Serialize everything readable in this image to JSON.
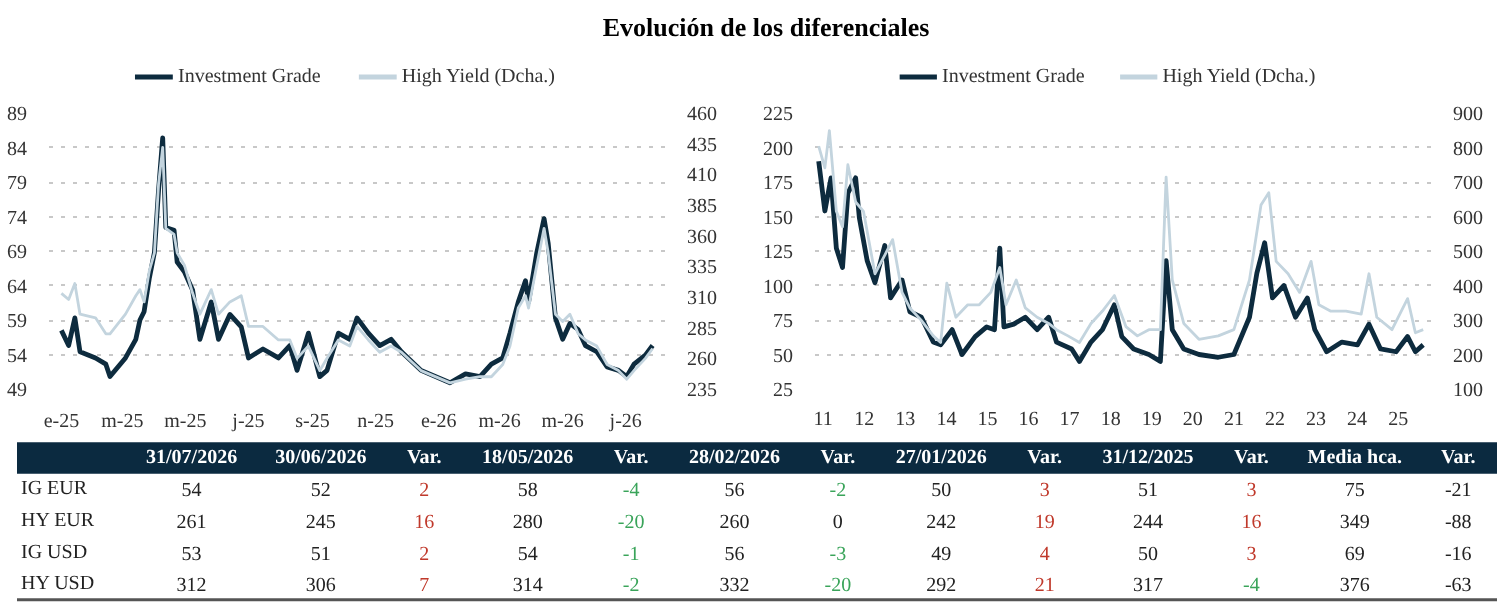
{
  "chart_data": [
    {
      "type": "line",
      "title": "Evolución de los diferenciales",
      "legend": "top",
      "grid": "y",
      "xlim": [
        "2024-12-20",
        "2026-08-08"
      ],
      "xticks": [
        {
          "value": "2025-01-01",
          "label": "e-25"
        },
        {
          "value": "2025-03-01",
          "label": "m-25"
        },
        {
          "value": "2025-05-01",
          "label": "m-25"
        },
        {
          "value": "2025-07-01",
          "label": "j-25"
        },
        {
          "value": "2025-09-01",
          "label": "s-25"
        },
        {
          "value": "2025-11-01",
          "label": "n-25"
        },
        {
          "value": "2026-01-01",
          "label": "e-26"
        },
        {
          "value": "2026-03-01",
          "label": "m-26"
        },
        {
          "value": "2026-05-01",
          "label": "m-26"
        },
        {
          "value": "2026-07-01",
          "label": "j-26"
        }
      ],
      "ylim": [
        49,
        89
      ],
      "yticks": [
        49,
        54,
        59,
        64,
        69,
        74,
        79,
        84,
        89
      ],
      "y2lim": [
        235,
        460
      ],
      "y2ticks": [
        235,
        260,
        285,
        310,
        335,
        360,
        385,
        410,
        435,
        460
      ],
      "x": [
        "2025-01-01",
        "2025-01-08",
        "2025-01-14",
        "2025-01-19",
        "2025-02-03",
        "2025-02-13",
        "2025-02-17",
        "2025-03-04",
        "2025-03-14",
        "2025-03-18",
        "2025-03-22",
        "2025-03-27",
        "2025-04-01",
        "2025-04-05",
        "2025-04-09",
        "2025-04-12",
        "2025-04-20",
        "2025-04-23",
        "2025-04-30",
        "2025-05-08",
        "2025-05-15",
        "2025-05-26",
        "2025-06-02",
        "2025-06-13",
        "2025-06-24",
        "2025-07-01",
        "2025-07-15",
        "2025-07-30",
        "2025-08-10",
        "2025-08-17",
        "2025-08-28",
        "2025-09-08",
        "2025-09-15",
        "2025-09-26",
        "2025-10-07",
        "2025-10-14",
        "2025-10-25",
        "2025-11-05",
        "2025-11-16",
        "2025-11-26",
        "2025-12-15",
        "2026-01-12",
        "2026-01-27",
        "2026-02-10",
        "2026-02-21",
        "2026-03-04",
        "2026-03-11",
        "2026-03-19",
        "2026-03-26",
        "2026-03-29",
        "2026-04-06",
        "2026-04-13",
        "2026-04-17",
        "2026-04-24",
        "2026-05-01",
        "2026-05-08",
        "2026-05-16",
        "2026-05-23",
        "2026-06-03",
        "2026-06-13",
        "2026-06-24",
        "2026-07-02",
        "2026-07-09",
        "2026-07-20",
        "2026-07-27"
      ],
      "series": [
        {
          "name": "Investment Grade",
          "color": "#0d2b3e",
          "values": [
            57.5,
            55.3,
            59.3,
            54.4,
            53.5,
            52.6,
            50.8,
            53.5,
            56.2,
            59,
            60.2,
            65,
            68.8,
            77.8,
            85.4,
            72.4,
            72,
            67.4,
            66,
            63.3,
            56.2,
            61.6,
            56.2,
            59.8,
            58,
            53.5,
            54.8,
            53.5,
            55.3,
            51.7,
            57.1,
            50.8,
            51.7,
            57.1,
            56.2,
            59.3,
            57.1,
            55.3,
            56.2,
            54.4,
            51.7,
            49.9,
            51.2,
            50.8,
            52.6,
            53.5,
            57.1,
            61.6,
            64.7,
            61.6,
            68.8,
            73.7,
            70.1,
            59.3,
            56.2,
            58.5,
            57.6,
            55.3,
            54.4,
            52.2,
            51.7,
            50.8,
            52.6,
            53.9,
            55.3
          ]
        },
        {
          "name": "High Yield (Dcha.)",
          "color": "#c3d4de",
          "axis": "y2",
          "values": [
            313,
            308,
            321,
            296,
            293,
            280,
            280,
            296,
            311,
            316,
            306,
            331,
            346,
            402,
            432,
            366,
            361,
            346,
            336,
            313,
            296,
            316,
            296,
            306,
            311,
            286,
            286,
            275,
            275,
            260,
            270,
            250,
            260,
            275,
            270,
            286,
            275,
            265,
            270,
            265,
            250,
            240,
            243,
            245,
            245,
            255,
            270,
            301,
            311,
            301,
            336,
            366,
            346,
            296,
            290,
            296,
            280,
            275,
            270,
            255,
            250,
            243,
            250,
            260,
            268
          ]
        }
      ]
    },
    {
      "type": "line",
      "legend": "top",
      "grid": "y",
      "xlim": [
        2010.8,
        2025.8
      ],
      "xticks": [
        {
          "value": 2011,
          "label": "11"
        },
        {
          "value": 2012,
          "label": "12"
        },
        {
          "value": 2013,
          "label": "13"
        },
        {
          "value": 2014,
          "label": "14"
        },
        {
          "value": 2015,
          "label": "15"
        },
        {
          "value": 2016,
          "label": "16"
        },
        {
          "value": 2017,
          "label": "17"
        },
        {
          "value": 2018,
          "label": "18"
        },
        {
          "value": 2019,
          "label": "19"
        },
        {
          "value": 2020,
          "label": "20"
        },
        {
          "value": 2021,
          "label": "21"
        },
        {
          "value": 2022,
          "label": "22"
        },
        {
          "value": 2023,
          "label": "23"
        },
        {
          "value": 2024,
          "label": "24"
        },
        {
          "value": 2025,
          "label": "25"
        }
      ],
      "ylim": [
        25,
        225
      ],
      "yticks": [
        25,
        50,
        75,
        100,
        125,
        150,
        175,
        200,
        225
      ],
      "y2lim": [
        100,
        900
      ],
      "y2ticks": [
        100,
        200,
        300,
        400,
        500,
        600,
        700,
        800,
        900
      ],
      "series": [
        {
          "name": "Investment Grade",
          "color": "#0d2b3e",
          "x": [
            2010.89,
            2011.04,
            2011.19,
            2011.32,
            2011.47,
            2011.6,
            2011.79,
            2011.88,
            2012.07,
            2012.26,
            2012.5,
            2012.64,
            2012.92,
            2013.11,
            2013.39,
            2013.68,
            2013.86,
            2014.14,
            2014.38,
            2014.7,
            2014.98,
            2015.17,
            2015.3,
            2015.4,
            2015.64,
            2015.92,
            2016.21,
            2016.49,
            2016.68,
            2017.05,
            2017.24,
            2017.52,
            2017.8,
            2018.09,
            2018.27,
            2018.56,
            2018.93,
            2019.21,
            2019.35,
            2019.5,
            2019.78,
            2020.15,
            2020.62,
            2021.0,
            2021.38,
            2021.56,
            2021.75,
            2021.94,
            2022.22,
            2022.5,
            2022.79,
            2022.97,
            2023.26,
            2023.63,
            2024.01,
            2024.29,
            2024.57,
            2024.95,
            2025.23,
            2025.42,
            2025.61
          ],
          "values": [
            190,
            154,
            178,
            127,
            113,
            167,
            178,
            149,
            118,
            102,
            129,
            91,
            104,
            81,
            77,
            59,
            57,
            68,
            50,
            63,
            70,
            68,
            127,
            70,
            72,
            77,
            68,
            77,
            59,
            54,
            45,
            59,
            68,
            86,
            63,
            54,
            50,
            45,
            118,
            68,
            54,
            50,
            48,
            50,
            77,
            109,
            131,
            91,
            100,
            77,
            91,
            68,
            52,
            59,
            57,
            72,
            54,
            52,
            63,
            52,
            57
          ]
        },
        {
          "name": "High Yield (Dcha.)",
          "color": "#c3d4de",
          "axis": "y2",
          "x": [
            2010.89,
            2011.04,
            2011.15,
            2011.32,
            2011.47,
            2011.6,
            2011.79,
            2011.98,
            2012.26,
            2012.5,
            2012.69,
            2012.92,
            2013.11,
            2013.39,
            2013.68,
            2013.86,
            2014.01,
            2014.23,
            2014.52,
            2014.8,
            2015.08,
            2015.3,
            2015.45,
            2015.7,
            2015.92,
            2016.21,
            2016.49,
            2016.68,
            2016.96,
            2017.24,
            2017.52,
            2017.8,
            2018.09,
            2018.37,
            2018.65,
            2018.93,
            2019.21,
            2019.35,
            2019.5,
            2019.78,
            2020.15,
            2020.62,
            2021.0,
            2021.38,
            2021.66,
            2021.85,
            2022.03,
            2022.32,
            2022.6,
            2022.88,
            2023.07,
            2023.35,
            2023.73,
            2024.1,
            2024.29,
            2024.48,
            2024.85,
            2025.23,
            2025.42,
            2025.61
          ],
          "values": [
            804,
            741,
            849,
            615,
            570,
            750,
            642,
            615,
            434,
            488,
            533,
            380,
            335,
            299,
            254,
            235,
            407,
            308,
            344,
            344,
            380,
            452,
            344,
            416,
            335,
            308,
            290,
            272,
            254,
            235,
            290,
            326,
            371,
            281,
            254,
            272,
            272,
            714,
            416,
            290,
            244,
            254,
            272,
            416,
            633,
            669,
            470,
            434,
            380,
            470,
            344,
            326,
            326,
            317,
            434,
            308,
            272,
            362,
            263,
            272
          ]
        }
      ]
    },
    {
      "type": "heatmap",
      "data_labels": true,
      "categories": [
        "31/07/2026",
        "30/06/2026",
        "Var.",
        "18/05/2026",
        "Var.",
        "28/02/2026",
        "Var.",
        "27/01/2026",
        "Var.",
        "31/12/2025",
        "Var.",
        "Media hca.",
        "Var."
      ],
      "y_categories": [
        "IG EUR",
        "HY EUR",
        "IG USD",
        "HY USD"
      ],
      "cells": [
        [
          54,
          52,
          2,
          58,
          -4,
          56,
          -2,
          50,
          3,
          51,
          3,
          75,
          -21
        ],
        [
          261,
          245,
          16,
          280,
          -20,
          260,
          0,
          242,
          19,
          244,
          16,
          349,
          -88
        ],
        [
          53,
          51,
          2,
          54,
          -1,
          56,
          -3,
          49,
          4,
          50,
          3,
          69,
          -16
        ],
        [
          312,
          306,
          7,
          314,
          -2,
          332,
          -20,
          292,
          21,
          317,
          -4,
          376,
          -63
        ]
      ],
      "colors": [
        [
          "#222222",
          "#222222",
          "#c0392b",
          "#222222",
          "#3aa45a",
          "#222222",
          "#3aa45a",
          "#222222",
          "#c0392b",
          "#222222",
          "#c0392b",
          "#222222",
          "#222222"
        ],
        [
          "#222222",
          "#222222",
          "#c0392b",
          "#222222",
          "#3aa45a",
          "#222222",
          "#222222",
          "#222222",
          "#c0392b",
          "#222222",
          "#c0392b",
          "#222222",
          "#222222"
        ],
        [
          "#222222",
          "#222222",
          "#c0392b",
          "#222222",
          "#3aa45a",
          "#222222",
          "#3aa45a",
          "#222222",
          "#c0392b",
          "#222222",
          "#c0392b",
          "#222222",
          "#222222"
        ],
        [
          "#222222",
          "#222222",
          "#c0392b",
          "#222222",
          "#3aa45a",
          "#222222",
          "#3aa45a",
          "#222222",
          "#c0392b",
          "#222222",
          "#3aa45a",
          "#222222",
          "#222222"
        ]
      ]
    }
  ]
}
